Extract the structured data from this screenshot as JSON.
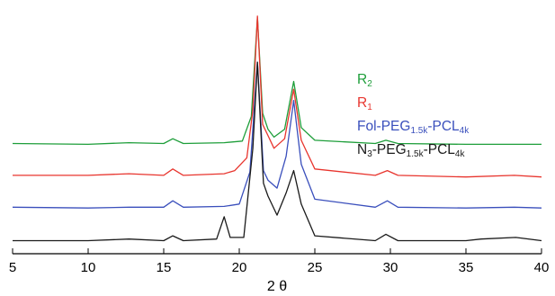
{
  "chart_data": {
    "type": "line",
    "title": "",
    "xlabel": "2 θ",
    "ylabel": "",
    "xlim": [
      5,
      40
    ],
    "xticks": [
      5,
      10,
      15,
      20,
      25,
      30,
      35,
      40
    ],
    "y_axis_shown": false,
    "grid": false,
    "legend_position": "top-right",
    "y_units": "arbitrary intensity, traces vertically offset",
    "series": [
      {
        "name": "R2",
        "color": "#1e9e3a",
        "points": [
          [
            5,
            63
          ],
          [
            10,
            62.5
          ],
          [
            12.7,
            63.5
          ],
          [
            15,
            63
          ],
          [
            15.6,
            66
          ],
          [
            16.3,
            63
          ],
          [
            19,
            63.5
          ],
          [
            20.2,
            64.5
          ],
          [
            20.8,
            80
          ],
          [
            21.2,
            142
          ],
          [
            21.55,
            82
          ],
          [
            21.9,
            72
          ],
          [
            22.3,
            67
          ],
          [
            23,
            72
          ],
          [
            23.6,
            102
          ],
          [
            24.1,
            73
          ],
          [
            25,
            65
          ],
          [
            29,
            63
          ],
          [
            29.7,
            65
          ],
          [
            30.5,
            63
          ],
          [
            35,
            62.5
          ],
          [
            38.3,
            62.5
          ],
          [
            40,
            62.5
          ]
        ]
      },
      {
        "name": "R1",
        "color": "#e8352e",
        "points": [
          [
            5,
            43
          ],
          [
            10,
            43
          ],
          [
            12.7,
            44
          ],
          [
            15,
            43
          ],
          [
            15.6,
            47
          ],
          [
            16.3,
            43
          ],
          [
            19,
            44
          ],
          [
            19.7,
            46
          ],
          [
            20.5,
            54
          ],
          [
            20.9,
            84
          ],
          [
            21.2,
            143
          ],
          [
            21.55,
            75
          ],
          [
            21.9,
            68
          ],
          [
            22.3,
            60
          ],
          [
            23,
            66
          ],
          [
            23.6,
            97
          ],
          [
            24.1,
            65
          ],
          [
            25,
            47
          ],
          [
            29,
            43
          ],
          [
            29.8,
            46
          ],
          [
            30.5,
            43
          ],
          [
            35,
            42
          ],
          [
            38.2,
            43
          ],
          [
            40,
            42
          ]
        ]
      },
      {
        "name": "Fol-PEG1.5k-PCL4k",
        "color": "#3a4fbc",
        "points": [
          [
            5,
            23
          ],
          [
            10,
            22.5
          ],
          [
            12.7,
            23
          ],
          [
            15,
            23
          ],
          [
            15.6,
            27
          ],
          [
            16.3,
            23
          ],
          [
            19,
            23.5
          ],
          [
            20,
            25
          ],
          [
            20.7,
            45
          ],
          [
            21.2,
            114
          ],
          [
            21.6,
            46
          ],
          [
            21.9,
            40
          ],
          [
            22.5,
            35
          ],
          [
            23.1,
            55
          ],
          [
            23.6,
            90
          ],
          [
            24.1,
            50
          ],
          [
            25,
            28
          ],
          [
            29,
            23
          ],
          [
            29.8,
            27
          ],
          [
            30.5,
            23
          ],
          [
            35,
            22.5
          ],
          [
            38.2,
            23
          ],
          [
            40,
            22.5
          ]
        ]
      },
      {
        "name": "N3-PEG1.5k-PCL4k",
        "color": "#1a1a1a",
        "points": [
          [
            5,
            2
          ],
          [
            10,
            2
          ],
          [
            12.7,
            3
          ],
          [
            15,
            2
          ],
          [
            15.6,
            5
          ],
          [
            16.3,
            2
          ],
          [
            18.5,
            3
          ],
          [
            19,
            17
          ],
          [
            19.4,
            4
          ],
          [
            20.3,
            4
          ],
          [
            20.9,
            60
          ],
          [
            21.2,
            114
          ],
          [
            21.6,
            38
          ],
          [
            21.9,
            30
          ],
          [
            22.5,
            18
          ],
          [
            23.1,
            32
          ],
          [
            23.6,
            46
          ],
          [
            24.1,
            25
          ],
          [
            25,
            5
          ],
          [
            29,
            2
          ],
          [
            29.7,
            6
          ],
          [
            30.5,
            2
          ],
          [
            35,
            2
          ],
          [
            36,
            3
          ],
          [
            38.3,
            4
          ],
          [
            40,
            2
          ]
        ]
      }
    ]
  }
}
